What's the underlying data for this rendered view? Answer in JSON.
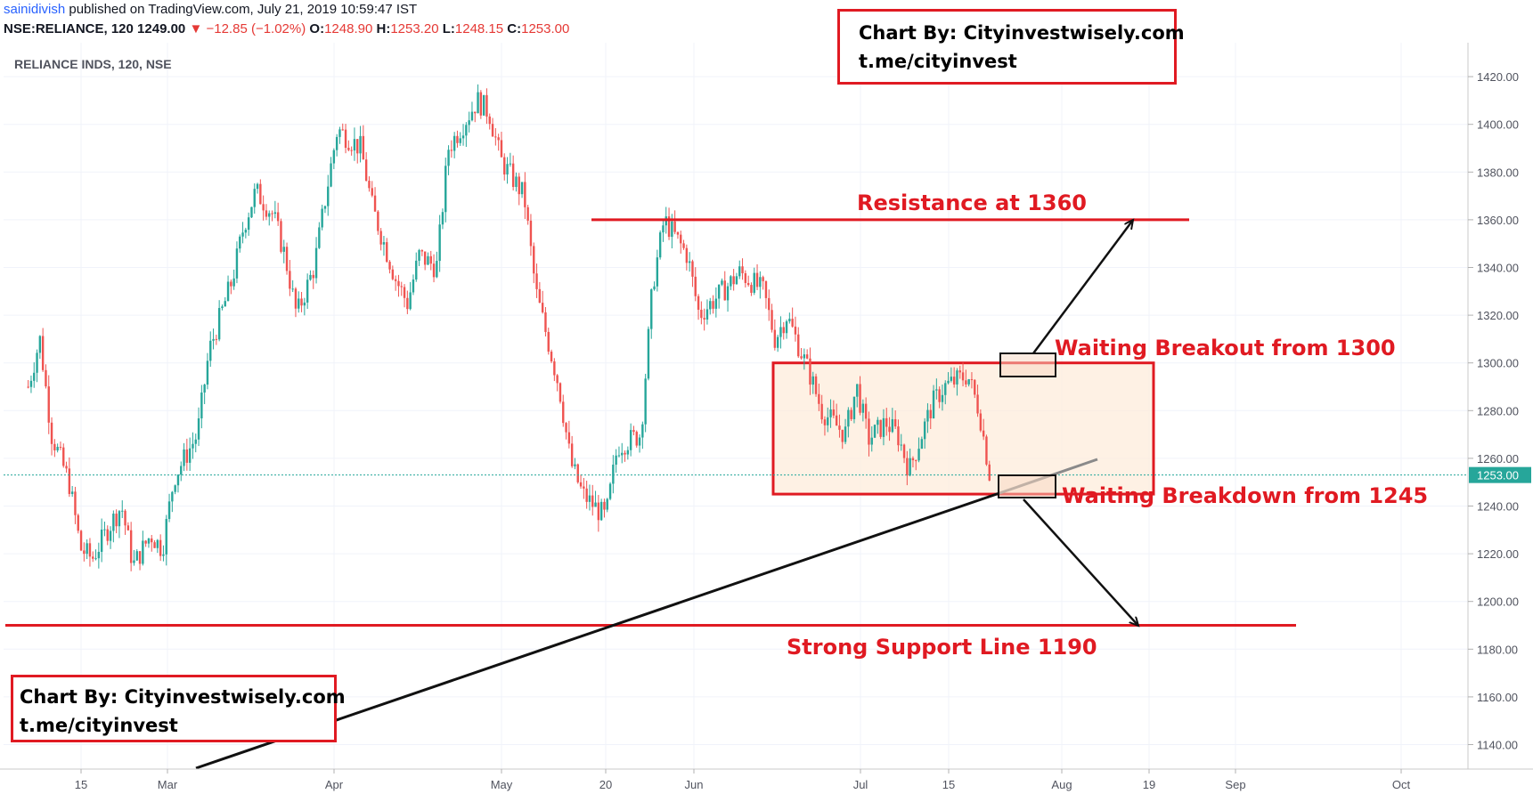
{
  "header": {
    "author": "sainidivish",
    "published_text": " published on TradingView.com, July 21, 2019 10:59:47 IST",
    "symbol": "NSE:RELIANCE, 120",
    "last": "1249.00",
    "change": "−12.85 (−1.02%)",
    "o_label": "O:",
    "o_value": "1248.90",
    "h_label": "H:",
    "h_value": "1253.20",
    "l_label": "L:",
    "l_value": "1248.15",
    "c_label": "C:",
    "c_value": "1253.00"
  },
  "chart_title": "RELIANCE INDS, 120, NSE",
  "branding": {
    "line1": "Chart By: Cityinvestwisely.com",
    "line2": "t.me/cityinvest"
  },
  "annotations": {
    "resistance": "Resistance at 1360",
    "breakout": "Waiting Breakout from 1300",
    "breakdown": "Waiting Breakdown from 1245",
    "support": "Strong Support Line 1190"
  },
  "colors": {
    "up": "#26a69a",
    "down": "#ef5350",
    "annotation_red": "#e01a22",
    "box_fill": "#fdebd9",
    "price_tag": "#26a69a"
  },
  "chart_data": {
    "type": "candlestick",
    "title": "RELIANCE INDS, 120, NSE",
    "y_ticks": [
      1140,
      1160,
      1180,
      1200,
      1220,
      1240,
      1260,
      1280,
      1300,
      1320,
      1340,
      1360,
      1380,
      1400,
      1420
    ],
    "ylim": [
      1130,
      1427
    ],
    "x_tick_labels": [
      "15",
      "Mar",
      "Apr",
      "May",
      "20",
      "Jun",
      "Jul",
      "15",
      "Aug",
      "19",
      "Sep",
      "Oct"
    ],
    "last_price_label": "1253.00",
    "last_price": 1253.0,
    "series": [
      {
        "name": "price",
        "x": [
          "2019-02-04",
          "2019-02-06",
          "2019-02-08",
          "2019-02-11",
          "2019-02-13",
          "2019-02-15",
          "2019-02-18",
          "2019-02-20",
          "2019-02-22",
          "2019-02-25",
          "2019-02-27",
          "2019-03-01",
          "2019-03-05",
          "2019-03-07",
          "2019-03-11",
          "2019-03-13",
          "2019-03-15",
          "2019-03-18",
          "2019-03-20",
          "2019-03-22",
          "2019-03-25",
          "2019-03-27",
          "2019-03-29",
          "2019-04-02",
          "2019-04-04",
          "2019-04-08",
          "2019-04-10",
          "2019-04-12",
          "2019-04-15",
          "2019-04-17",
          "2019-04-22",
          "2019-04-24",
          "2019-04-26",
          "2019-04-30",
          "2019-05-02",
          "2019-05-06",
          "2019-05-08",
          "2019-05-10",
          "2019-05-14",
          "2019-05-16",
          "2019-05-20",
          "2019-05-22",
          "2019-05-24",
          "2019-05-28",
          "2019-05-30",
          "2019-06-03",
          "2019-06-06",
          "2019-06-10",
          "2019-06-12",
          "2019-06-14",
          "2019-06-18",
          "2019-06-20",
          "2019-06-24",
          "2019-06-26",
          "2019-06-28",
          "2019-07-01",
          "2019-07-03",
          "2019-07-05",
          "2019-07-09",
          "2019-07-11",
          "2019-07-15",
          "2019-07-17",
          "2019-07-19"
        ],
        "values": [
          1290,
          1310,
          1270,
          1250,
          1222,
          1218,
          1232,
          1240,
          1215,
          1228,
          1222,
          1252,
          1270,
          1305,
          1335,
          1358,
          1372,
          1362,
          1345,
          1320,
          1340,
          1370,
          1398,
          1390,
          1365,
          1335,
          1325,
          1345,
          1340,
          1390,
          1410,
          1405,
          1385,
          1370,
          1330,
          1290,
          1258,
          1245,
          1235,
          1265,
          1270,
          1332,
          1360,
          1345,
          1320,
          1330,
          1338,
          1330,
          1310,
          1320,
          1295,
          1280,
          1270,
          1290,
          1268,
          1275,
          1270,
          1255,
          1283,
          1290,
          1295,
          1280,
          1250
        ]
      },
      {
        "name": "trendline",
        "x": [
          "2019-03-01",
          "2019-07-28"
        ],
        "values": [
          1128,
          1261
        ]
      },
      {
        "name": "levels",
        "x": [
          "resistance",
          "breakout",
          "breakdown",
          "support"
        ],
        "values": [
          1360,
          1300,
          1245,
          1190
        ]
      }
    ]
  }
}
